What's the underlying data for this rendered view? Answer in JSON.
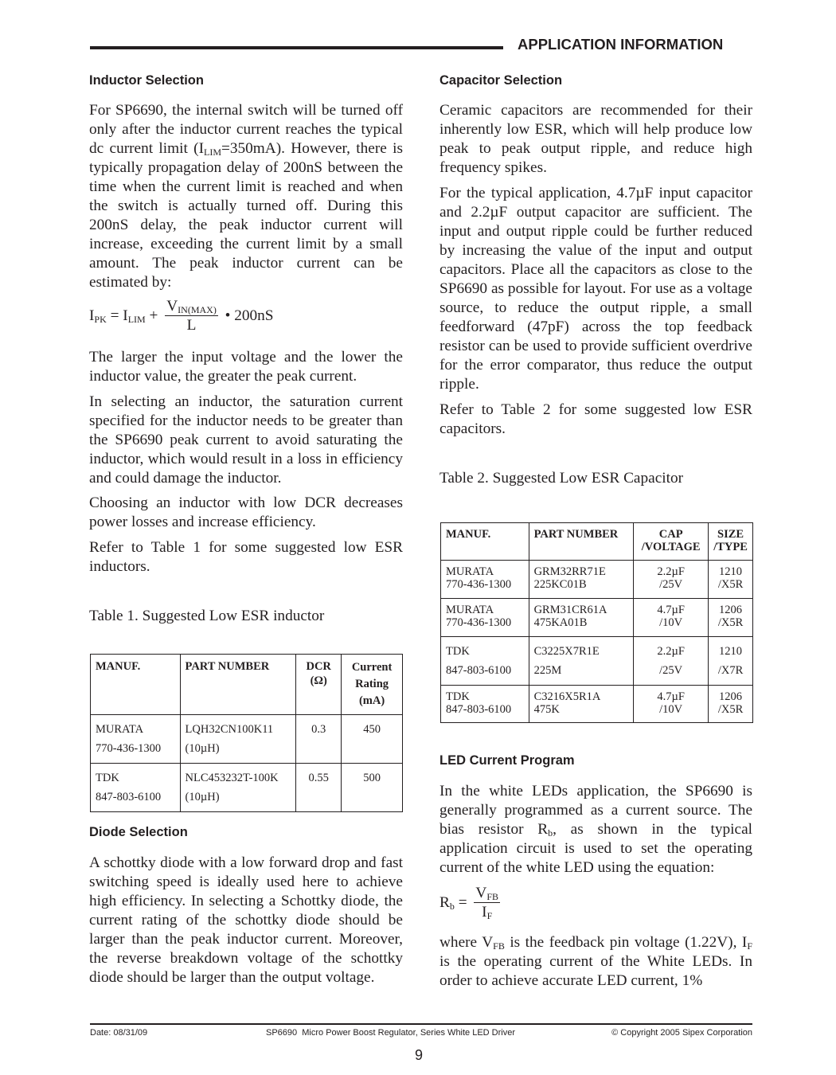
{
  "header": {
    "section_title": "APPLICATION INFORMATION"
  },
  "inductor": {
    "heading": "Inductor Selection",
    "p1": [
      "For SP6690, the internal switch will be turned off only after the inductor current reaches the typical dc current limit (I",
      "LIM",
      "=350mA). However, there is typically propagation delay of 200nS between the time when the current limit is reached and when the switch is actually turned off. During this 200nS delay, the peak inductor current will increase, exceeding the current limit by a small amount. The peak inductor current can be estimated by:"
    ],
    "equation": {
      "lhs": "I",
      "lhs_sub": "PK",
      "eq": " = I",
      "lim_sub": "LIM",
      "plus": " +",
      "num": "V",
      "num_sub": "IN(MAX)",
      "den": "L",
      "tail": "• 200nS"
    },
    "p2": "The larger the input voltage and the lower the inductor value, the greater the peak current.",
    "p3": "In selecting an inductor, the saturation current specified for the inductor needs to be greater than the SP6690 peak current to avoid saturating the inductor, which would result in a loss in efficiency and could damage the inductor.",
    "p4": "Choosing an inductor with low DCR decreases power losses and increase efficiency.",
    "p5": "Refer to Table 1 for some suggested low ESR inductors.",
    "table_caption": "Table 1. Suggested Low ESR inductor",
    "table": {
      "headers": [
        "MANUF.",
        "PART NUMBER",
        "DCR (Ω)",
        "Current Rating (mA)"
      ],
      "rows": [
        {
          "manuf": "MURATA",
          "phone": "770-436-1300",
          "part": "LQH32CN100K11",
          "ind": "(10µH)",
          "dcr": "0.3",
          "rating": "450"
        },
        {
          "manuf": "TDK",
          "phone": "847-803-6100",
          "part": "NLC453232T-100K",
          "ind": "(10µH)",
          "dcr": "0.55",
          "rating": "500"
        }
      ]
    }
  },
  "diode": {
    "heading": "Diode Selection",
    "p1": "A schottky diode with a low forward drop and fast switching speed is ideally used here to achieve high efficiency. In selecting a Schottky diode, the current rating of the schottky diode should be larger than the peak inductor current. Moreover, the reverse breakdown voltage of the schottky diode should be larger than the output voltage."
  },
  "capacitor": {
    "heading": "Capacitor Selection",
    "p1": "Ceramic capacitors are recommended for their inherently low ESR, which will help produce low peak to peak output ripple, and reduce high frequency spikes.",
    "p2": "For the typical application, 4.7µF input capacitor and 2.2µF output capacitor are sufficient. The input and output ripple could be further reduced by increasing the value of the input and output capacitors. Place all the capacitors as close to the SP6690 as possible for layout. For use as a voltage source, to reduce the output ripple, a small feedforward (47pF) across the top feedback resistor can be used to provide sufficient overdrive for the error comparator, thus reduce the output ripple.",
    "p3": "Refer to Table 2 for some suggested low ESR capacitors.",
    "table_caption": "Table 2. Suggested Low ESR Capacitor",
    "table": {
      "headers": [
        "MANUF.",
        "PART NUMBER",
        "CAP /VOLTAGE",
        "SIZE /TYPE"
      ],
      "rows": [
        {
          "manuf": "MURATA",
          "phone": "770-436-1300",
          "part1": "GRM32RR71E",
          "part2": "225KC01B",
          "cap": "2.2µF",
          "volt": "/25V",
          "size": "1210",
          "type": "/X5R"
        },
        {
          "manuf": "MURATA",
          "phone": "770-436-1300",
          "part1": "GRM31CR61A",
          "part2": "475KA01B",
          "cap": "4.7µF",
          "volt": "/10V",
          "size": "1206",
          "type": "/X5R"
        },
        {
          "manuf": "TDK",
          "phone": "847-803-6100",
          "part1": "C3225X7R1E",
          "part2": "225M",
          "cap": "2.2µF",
          "volt": "/25V",
          "size": "1210",
          "type": "/X7R"
        },
        {
          "manuf": "TDK",
          "phone": "847-803-6100",
          "part1": "C3216X5R1A",
          "part2": "475K",
          "cap": "4.7µF",
          "volt": "/10V",
          "size": "1206",
          "type": "/X5R"
        }
      ]
    }
  },
  "led": {
    "heading": "LED Current Program",
    "p1": [
      "In the white LEDs application, the SP6690 is generally programmed as a current source. The bias resistor R",
      "b",
      ", as shown in the typical application circuit is used to set the operating current of the white LED using the equation:"
    ],
    "equation": {
      "lhs": "R",
      "lhs_sub": "b",
      "eq": " =",
      "num": "V",
      "num_sub": "FB",
      "den": "I",
      "den_sub": "F"
    },
    "p2": [
      "where V",
      "FB",
      " is the feedback pin voltage (1.22V), I",
      "F",
      " is the operating current of the White LEDs. In order to achieve accurate LED current, 1%"
    ]
  },
  "footer": {
    "date": "Date: 08/31/09",
    "doc_title": "SP6690  Micro Power Boost Regulator, Series White LED Driver",
    "copyright": "© Copyright 2005 Sipex Corporation",
    "page": "9"
  }
}
